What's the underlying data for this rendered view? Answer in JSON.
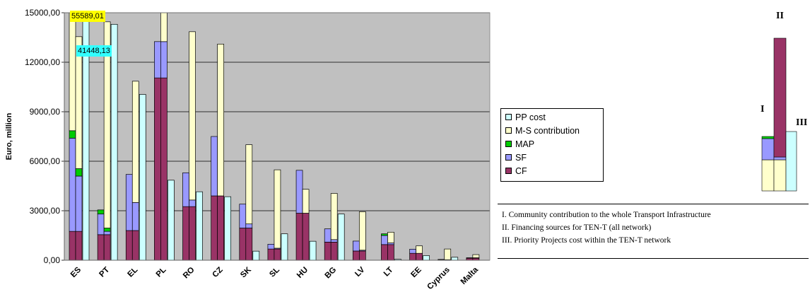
{
  "chart_data": {
    "type": "bar",
    "ylabel": "Euro, million",
    "ylim": [
      0,
      15000
    ],
    "yticks": [
      "0,00",
      "3000,00",
      "6000,00",
      "9000,00",
      "12000,00",
      "15000,00"
    ],
    "categories": [
      "ES",
      "PT",
      "EL",
      "PL",
      "RO",
      "CZ",
      "SK",
      "SL",
      "HU",
      "BG",
      "LV",
      "LT",
      "EE",
      "Cyprus",
      "Malta"
    ],
    "stack_I": {
      "CF": [
        1750,
        1550,
        1800,
        11050,
        3250,
        3900,
        1950,
        680,
        2850,
        1100,
        560,
        950,
        420,
        30,
        120
      ],
      "SF": [
        5650,
        1250,
        3400,
        2200,
        2050,
        3600,
        1450,
        290,
        2600,
        800,
        600,
        550,
        250,
        20,
        30
      ],
      "MAP": [
        450,
        250,
        0,
        0,
        0,
        0,
        0,
        0,
        0,
        0,
        0,
        100,
        0,
        0,
        0
      ],
      "M-S contribution": [
        55589.01,
        0,
        0,
        0,
        0,
        0,
        0,
        0,
        0,
        0,
        0,
        0,
        0,
        0,
        0
      ]
    },
    "stack_II": {
      "CF": [
        1750,
        1550,
        1800,
        11050,
        3250,
        3900,
        1950,
        680,
        2850,
        1100,
        560,
        950,
        420,
        30,
        120
      ],
      "SF": [
        3350,
        200,
        1700,
        2200,
        400,
        0,
        250,
        50,
        0,
        150,
        50,
        100,
        0,
        0,
        30
      ],
      "MAP": [
        450,
        200,
        0,
        0,
        0,
        0,
        0,
        0,
        0,
        0,
        0,
        0,
        0,
        0,
        0
      ],
      "M-S contribution": [
        8000,
        12500,
        7350,
        7000,
        10200,
        9200,
        4800,
        4750,
        1450,
        2800,
        2330,
        650,
        450,
        650,
        190
      ]
    },
    "pp_cost": [
      41448.13,
      14300,
      10050,
      4850,
      4150,
      3850,
      550,
      1600,
      1150,
      2800,
      0,
      60,
      280,
      180,
      0
    ],
    "labels": [
      "55589,01",
      "41448,13"
    ],
    "legend": [
      {
        "name": "PP cost",
        "color": "#ccffff"
      },
      {
        "name": "M-S contribution",
        "color": "#ffffcc"
      },
      {
        "name": "MAP",
        "color": "#00cc00"
      },
      {
        "name": "SF",
        "color": "#9999ff"
      },
      {
        "name": "CF",
        "color": "#993366"
      }
    ],
    "legend_position": "right",
    "plot_background": "#c0c0c0",
    "grid": true
  },
  "notes": [
    "I. Community contribution to the whole Transport Infrastructure",
    "II. Financing sources for TEN-T (all network)",
    "III. Priority Projects cost within the TEN-T network"
  ],
  "key_labels": {
    "I": "I",
    "II": "II",
    "III": "III"
  }
}
